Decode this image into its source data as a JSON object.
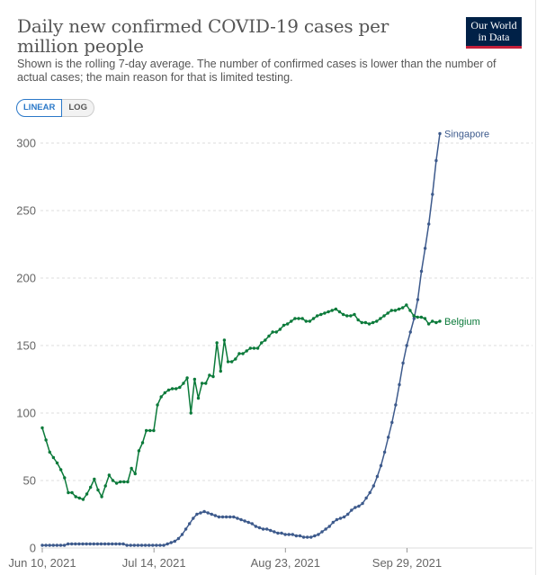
{
  "header": {
    "title": "Daily new confirmed COVID-19 cases per million people",
    "subtitle": "Shown is the rolling 7-day average. The number of confirmed cases is lower than the number of actual cases; the main reason for that is limited testing.",
    "logo_line1": "Our World",
    "logo_line2": "in Data"
  },
  "controls": {
    "linear_label": "LINEAR",
    "log_label": "LOG",
    "selected": "linear"
  },
  "colors": {
    "singapore": "#3d5a8c",
    "belgium": "#0b7a3a",
    "grid": "#dddddd",
    "axis_text": "#666666"
  },
  "chart_data": {
    "type": "line",
    "title": "Daily new confirmed COVID-19 cases per million people",
    "xlabel": "",
    "ylabel": "",
    "x_ticks": [
      "Jun 10, 2021",
      "Jul 14, 2021",
      "Aug 23, 2021",
      "Sep 29, 2021"
    ],
    "ylim": [
      0,
      300
    ],
    "y_ticks": [
      0,
      50,
      100,
      150,
      200,
      250,
      300
    ],
    "grid": true,
    "legend": "inline labels at line ends",
    "x_start": "2021-06-10",
    "x_end": "2021-10-09",
    "series": [
      {
        "name": "Singapore",
        "values": [
          2,
          2,
          2,
          2,
          2,
          2,
          2,
          3,
          3,
          3,
          3,
          3,
          3,
          3,
          3,
          3,
          3,
          3,
          3,
          3,
          3,
          3,
          3,
          2,
          2,
          2,
          2,
          2,
          2,
          2,
          2,
          2,
          2,
          2,
          3,
          4,
          5,
          7,
          10,
          14,
          18,
          22,
          25,
          26,
          27,
          26,
          25,
          24,
          23,
          23,
          23,
          23,
          23,
          22,
          21,
          20,
          19,
          18,
          16,
          15,
          14,
          14,
          13,
          12,
          11,
          11,
          10,
          10,
          10,
          9,
          9,
          8,
          8,
          8,
          9,
          10,
          12,
          14,
          16,
          19,
          21,
          22,
          23,
          25,
          28,
          30,
          31,
          33,
          37,
          41,
          46,
          53,
          61,
          71,
          82,
          93,
          106,
          121,
          137,
          150,
          160,
          170,
          184,
          205,
          222,
          240,
          262,
          287,
          307
        ]
      },
      {
        "name": "Belgium",
        "values": [
          89,
          80,
          71,
          67,
          63,
          58,
          52,
          41,
          41,
          38,
          37,
          36,
          40,
          45,
          51,
          43,
          38,
          46,
          54,
          50,
          48,
          49,
          49,
          49,
          59,
          55,
          72,
          78,
          87,
          87,
          87,
          106,
          112,
          115,
          117,
          118,
          118,
          119,
          122,
          126,
          100,
          125,
          111,
          122,
          122,
          128,
          127,
          152,
          131,
          154,
          138,
          138,
          140,
          144,
          144,
          146,
          148,
          148,
          148,
          152,
          154,
          157,
          160,
          160,
          162,
          165,
          166,
          168,
          170,
          170,
          170,
          168,
          168,
          170,
          172,
          173,
          174,
          175,
          176,
          177,
          175,
          173,
          172,
          172,
          173,
          169,
          167,
          167,
          166,
          167,
          168,
          170,
          172,
          174,
          176,
          176,
          177,
          178,
          180,
          176,
          172,
          171,
          171,
          170,
          166,
          168,
          167,
          168
        ]
      }
    ]
  }
}
